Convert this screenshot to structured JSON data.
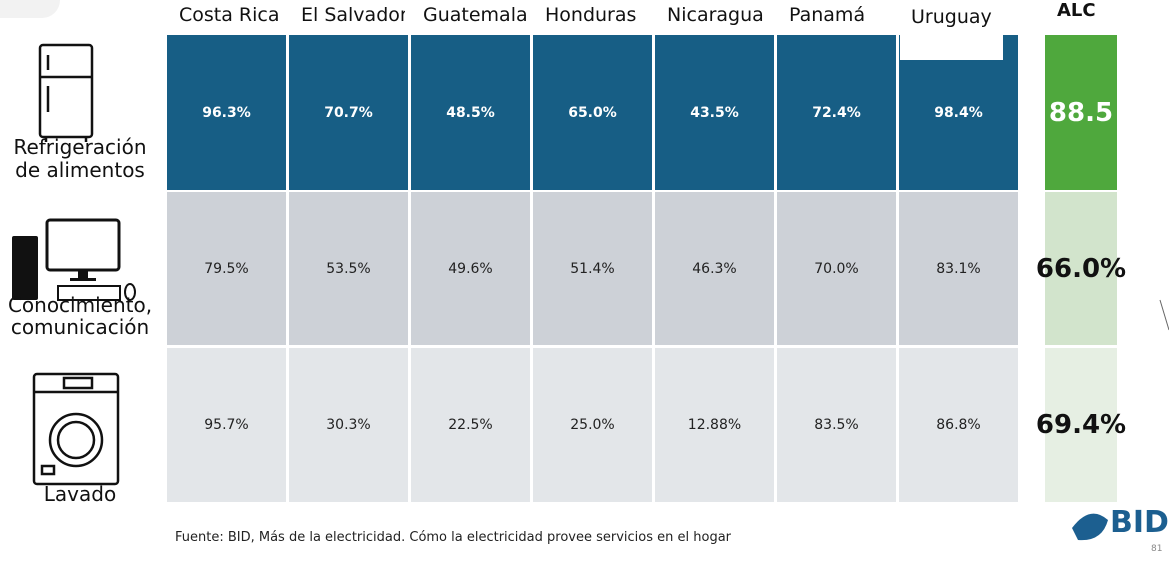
{
  "table": {
    "header": [
      "Costa Rica",
      "El Salvador",
      "Guatemala",
      "Honduras",
      "Nicaragua",
      "Panamá",
      "Uruguay"
    ],
    "alc_header": "ALC",
    "rows": [
      {
        "label": [
          "Refrigeración",
          "de alimentos"
        ],
        "cells": [
          "96.3%",
          "70.7%",
          "48.5%",
          "65.0%",
          "43.5%",
          "72.4%",
          "98.4%"
        ],
        "alc": "88.5"
      },
      {
        "label": [
          "Conocimiento,",
          "comunicación"
        ],
        "cells": [
          "79.5%",
          "53.5%",
          "49.6%",
          "51.4%",
          "46.3%",
          "70.0%",
          "83.1%"
        ],
        "alc": "66.0%"
      },
      {
        "label": [
          "Lavado"
        ],
        "cells": [
          "95.7%",
          "30.3%",
          "22.5%",
          "25.0%",
          "12.88%",
          "83.5%",
          "86.8%"
        ],
        "alc": "69.4%"
      }
    ]
  },
  "footer": {
    "source": "Fuente: BID, Más de la electricidad. Cómo la electricidad provee servicios en el hogar",
    "logo": "BID",
    "page": "81"
  }
}
